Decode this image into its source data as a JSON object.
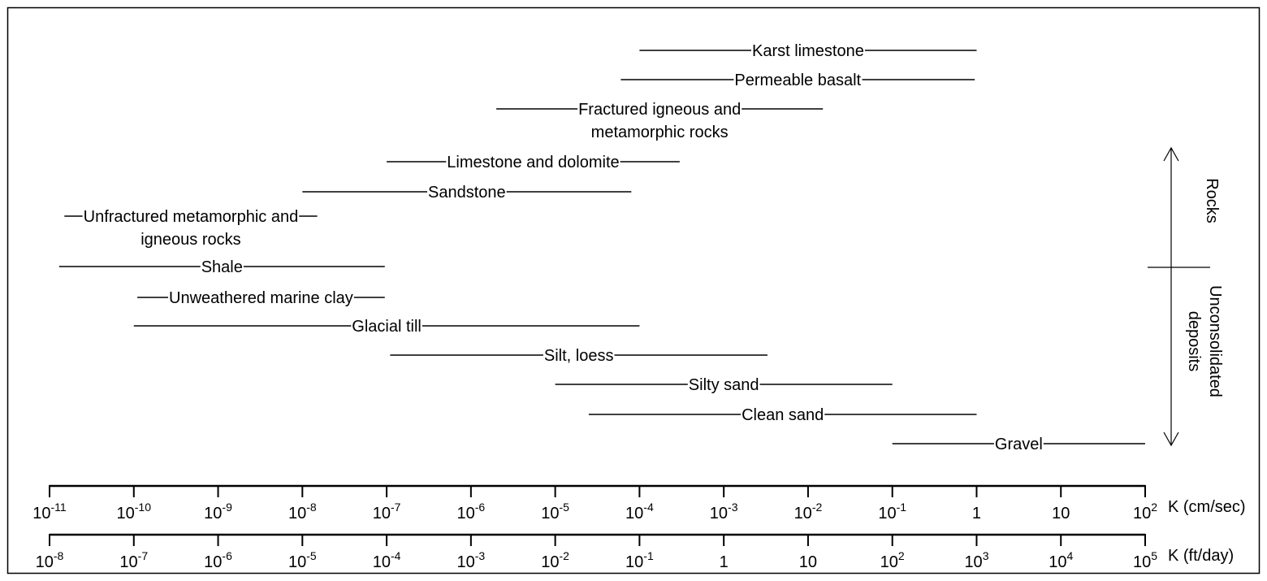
{
  "chart_data": {
    "type": "range",
    "x_scale": "log",
    "xlim": [
      "1e-11",
      "1e2"
    ],
    "axes": [
      {
        "unit_label": "K (cm/sec)",
        "ticks": [
          {
            "base": "10",
            "exp": "-11"
          },
          {
            "base": "10",
            "exp": "-10"
          },
          {
            "base": "10",
            "exp": "-9"
          },
          {
            "base": "10",
            "exp": "-8"
          },
          {
            "base": "10",
            "exp": "-7"
          },
          {
            "base": "10",
            "exp": "-6"
          },
          {
            "base": "10",
            "exp": "-5"
          },
          {
            "base": "10",
            "exp": "-4"
          },
          {
            "base": "10",
            "exp": "-3"
          },
          {
            "base": "10",
            "exp": "-2"
          },
          {
            "base": "10",
            "exp": "-1"
          },
          {
            "base": "1",
            "exp": ""
          },
          {
            "base": "10",
            "exp": ""
          },
          {
            "base": "10",
            "exp": "2"
          }
        ]
      },
      {
        "unit_label": "K (ft/day)",
        "ticks": [
          {
            "base": "10",
            "exp": "-8"
          },
          {
            "base": "10",
            "exp": "-7"
          },
          {
            "base": "10",
            "exp": "-6"
          },
          {
            "base": "10",
            "exp": "-5"
          },
          {
            "base": "10",
            "exp": "-4"
          },
          {
            "base": "10",
            "exp": "-3"
          },
          {
            "base": "10",
            "exp": "-2"
          },
          {
            "base": "10",
            "exp": "-1"
          },
          {
            "base": "1",
            "exp": ""
          },
          {
            "base": "10",
            "exp": ""
          },
          {
            "base": "10",
            "exp": "2"
          },
          {
            "base": "10",
            "exp": "3"
          },
          {
            "base": "10",
            "exp": "4"
          },
          {
            "base": "10",
            "exp": "5"
          }
        ]
      }
    ],
    "ranges": [
      {
        "name": [
          "Karst limestone"
        ],
        "min_cm_s": 0.0001,
        "max_cm_s": 1
      },
      {
        "name": [
          "Permeable basalt"
        ],
        "min_cm_s": 6e-05,
        "max_cm_s": 0.95
      },
      {
        "name": [
          "Fractured igneous and",
          "metamorphic rocks"
        ],
        "min_cm_s": 2e-06,
        "max_cm_s": 0.015
      },
      {
        "name": [
          "Limestone and dolomite"
        ],
        "min_cm_s": 1e-07,
        "max_cm_s": 0.0003
      },
      {
        "name": [
          "Sandstone"
        ],
        "min_cm_s": 1e-08,
        "max_cm_s": 8e-05
      },
      {
        "name": [
          "Unfractured metamorphic and",
          "igneous rocks"
        ],
        "min_cm_s": 1.5e-11,
        "max_cm_s": 1.5e-08
      },
      {
        "name": [
          "Shale"
        ],
        "min_cm_s": 1.3e-11,
        "max_cm_s": 9.5e-08
      },
      {
        "name": [
          "Unweathered marine clay"
        ],
        "min_cm_s": 1.1e-10,
        "max_cm_s": 9.5e-08
      },
      {
        "name": [
          "Glacial till"
        ],
        "min_cm_s": 1e-10,
        "max_cm_s": 0.0001
      },
      {
        "name": [
          "Silt, loess"
        ],
        "min_cm_s": 1.1e-07,
        "max_cm_s": 0.0033
      },
      {
        "name": [
          "Silty sand"
        ],
        "min_cm_s": 1e-05,
        "max_cm_s": 0.1
      },
      {
        "name": [
          "Clean sand"
        ],
        "min_cm_s": 2.5e-05,
        "max_cm_s": 1
      },
      {
        "name": [
          "Gravel"
        ],
        "min_cm_s": 0.1,
        "max_cm_s": 100
      }
    ],
    "groups": {
      "upper": "Rocks",
      "lower": [
        "Unconsolidated",
        "deposits"
      ]
    }
  }
}
